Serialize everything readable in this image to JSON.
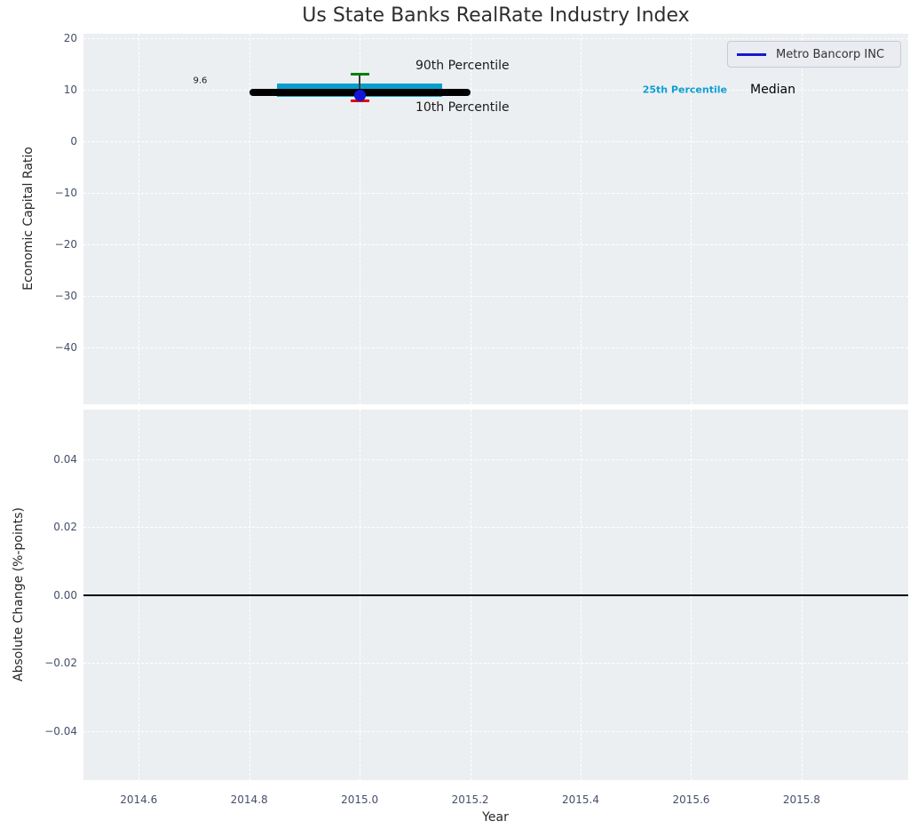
{
  "title": "Us State Banks RealRate Industry Index",
  "legend": {
    "label": "Metro Bancorp INC",
    "line_color": "#1717d6",
    "location": "upper right"
  },
  "xaxis": {
    "label": "Year",
    "tick_labels": [
      "2014.6",
      "2014.8",
      "2015.0",
      "2015.2",
      "2015.4",
      "2015.6",
      "2015.8"
    ],
    "tick_values": [
      2014.6,
      2014.8,
      2015.0,
      2015.2,
      2015.4,
      2015.6,
      2015.8
    ],
    "xlim": [
      2014.5,
      2015.993
    ]
  },
  "chart_data": [
    {
      "type": "boxplot",
      "panel": "top",
      "title": "Us State Banks RealRate Industry Index",
      "ylabel": "Economic Capital Ratio",
      "ytick_labels": [
        "20",
        "10",
        "0",
        "−10",
        "−20",
        "−30",
        "−40"
      ],
      "ytick_values": [
        20,
        10,
        0,
        -10,
        -20,
        -30,
        -40
      ],
      "ylim": [
        -51,
        20.9
      ],
      "grid": "white dashed on light gray",
      "legend_position": "upper right",
      "box": {
        "x_center": 2015.0,
        "median": 9.6,
        "q1": 8.6,
        "q3": 11.3,
        "whisker_low_p10": 7.8,
        "whisker_high_p90": 13.0,
        "company_value": 8.9,
        "median_x_span": [
          2014.8,
          2015.2
        ],
        "box_x_span": [
          2014.85,
          2015.15
        ],
        "cap_x_span": [
          2014.983,
          2015.017
        ]
      },
      "annotations": [
        {
          "text": "9.6",
          "x": 2014.724,
          "y": 11.76,
          "align": "right",
          "size": 10,
          "color": "#1a1a1a",
          "bold": false
        },
        {
          "text": "90th Percentile",
          "x": 2015.101,
          "y": 14.69,
          "align": "left",
          "size": 14,
          "color": "#1a1a1a",
          "bold": false
        },
        {
          "text": "10th Percentile",
          "x": 2015.101,
          "y": 6.55,
          "align": "left",
          "size": 14,
          "color": "#1a1a1a",
          "bold": false
        },
        {
          "text": "25th Percentile",
          "x": 2015.512,
          "y": 10.12,
          "align": "left",
          "size": 11,
          "color": "#0c9fd4",
          "bold": true
        },
        {
          "text": "Median",
          "x": 2015.707,
          "y": 10.02,
          "align": "left",
          "size": 14,
          "color": "#000000",
          "bold": false
        }
      ]
    },
    {
      "type": "line",
      "panel": "bottom",
      "ylabel": "Absolute Change (%-points)",
      "ytick_labels": [
        "0.04",
        "0.02",
        "0.00",
        "−0.02",
        "−0.04"
      ],
      "ytick_values": [
        0.04,
        0.02,
        0,
        -0.02,
        -0.04
      ],
      "ylim": [
        -0.0545,
        0.0546
      ],
      "zero_line_y": 0,
      "series": []
    }
  ],
  "colors": {
    "plot_bg": "#eceff1",
    "grid": "#ffffff",
    "box_fill": "#0a9ecd",
    "median_line": "#000000",
    "p90_cap": "#007f00",
    "p10_cap": "#e80000",
    "whisker": "#3c3c3c",
    "company_point": "#1515d9",
    "tick_label": "#44506a",
    "text": "#2d2d2d",
    "zero_line": "#000000"
  }
}
